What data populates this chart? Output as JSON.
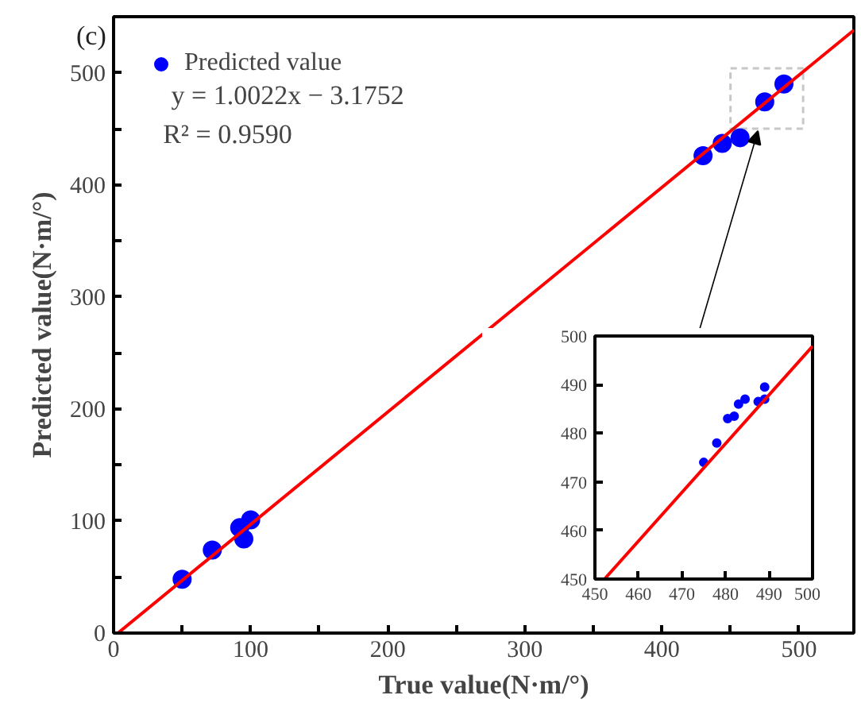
{
  "chart_data": [
    {
      "type": "scatter",
      "xlabel": "True value(N·m/°)",
      "ylabel": "Predicted value(N·m/°)",
      "annotations": [
        "(c)",
        "y = 1.0022x − 3.1752",
        "R² = 0.9590"
      ],
      "xlim": [
        0,
        540
      ],
      "ylim": [
        0,
        550
      ],
      "xticks": [
        0,
        {
          "value": 50,
          "label": null
        },
        100,
        {
          "value": 150,
          "label": null
        },
        200,
        {
          "value": 250,
          "label": null
        },
        300,
        {
          "value": 350,
          "label": null
        },
        400,
        {
          "value": 450,
          "label": null
        },
        500
      ],
      "yticks": [
        0,
        {
          "value": 50,
          "label": null
        },
        100,
        {
          "value": 150,
          "label": null
        },
        200,
        {
          "value": 250,
          "label": null
        },
        300,
        {
          "value": 350,
          "label": null
        },
        400,
        {
          "value": 450,
          "label": null
        },
        500
      ],
      "grid": false,
      "legend": "top left",
      "series": [
        {
          "name": "Predicted value",
          "marker": "circle",
          "color": "#0000ff",
          "x": [
            50,
            72,
            92,
            95,
            100,
            430,
            444,
            457,
            475,
            489
          ],
          "values": [
            48,
            74,
            94,
            84,
            101,
            426,
            437,
            442,
            474,
            490
          ]
        },
        {
          "type": "line",
          "color": "#ff0000",
          "x": [
            3.17,
            540
          ],
          "values": [
            0,
            538
          ]
        }
      ]
    },
    {
      "type": "scatter",
      "xlim": [
        450,
        500
      ],
      "ylim": [
        450,
        500
      ],
      "xticks": [
        450,
        460,
        470,
        480,
        490,
        500
      ],
      "yticks": [
        450,
        460,
        470,
        480,
        490,
        500
      ],
      "grid": false,
      "series": [
        {
          "marker": "circle",
          "color": "#0000ff",
          "x": [
            475,
            478,
            480.5,
            482,
            483,
            484.5,
            487.5,
            489,
            489
          ],
          "values": [
            474,
            478,
            483,
            483.5,
            486,
            487,
            486.5,
            489.5,
            487
          ]
        },
        {
          "type": "line",
          "color": "#ff0000",
          "x": [
            452.2,
            500
          ],
          "values": [
            450,
            497.9
          ]
        }
      ]
    }
  ]
}
